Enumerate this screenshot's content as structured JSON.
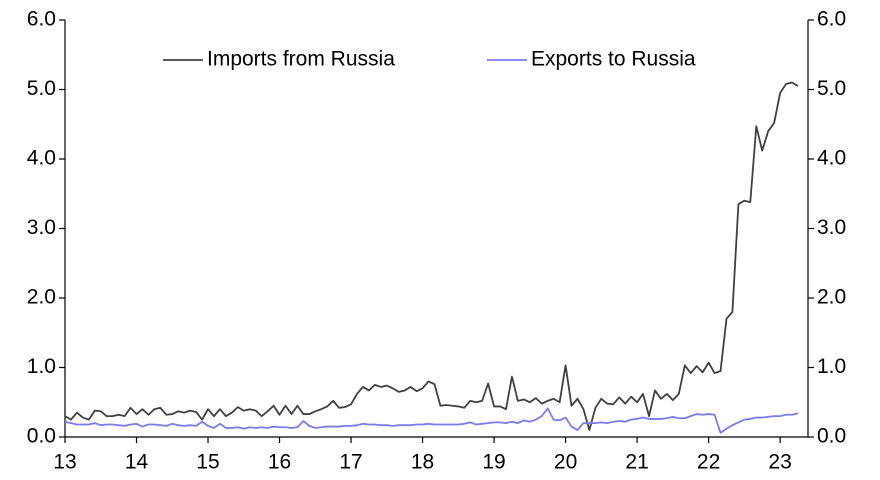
{
  "chart_data": {
    "type": "line",
    "x": [
      13,
      13.083,
      13.167,
      13.25,
      13.333,
      13.417,
      13.5,
      13.583,
      13.667,
      13.75,
      13.833,
      13.917,
      14,
      14.083,
      14.167,
      14.25,
      14.333,
      14.417,
      14.5,
      14.583,
      14.667,
      14.75,
      14.833,
      14.917,
      15,
      15.083,
      15.167,
      15.25,
      15.333,
      15.417,
      15.5,
      15.583,
      15.667,
      15.75,
      15.833,
      15.917,
      16,
      16.083,
      16.167,
      16.25,
      16.333,
      16.417,
      16.5,
      16.583,
      16.667,
      16.75,
      16.833,
      16.917,
      17,
      17.083,
      17.167,
      17.25,
      17.333,
      17.417,
      17.5,
      17.583,
      17.667,
      17.75,
      17.833,
      17.917,
      18,
      18.083,
      18.167,
      18.25,
      18.333,
      18.417,
      18.5,
      18.583,
      18.667,
      18.75,
      18.833,
      18.917,
      19,
      19.083,
      19.167,
      19.25,
      19.333,
      19.417,
      19.5,
      19.583,
      19.667,
      19.75,
      19.833,
      19.917,
      20,
      20.083,
      20.167,
      20.25,
      20.333,
      20.417,
      20.5,
      20.583,
      20.667,
      20.75,
      20.833,
      20.917,
      21,
      21.083,
      21.167,
      21.25,
      21.333,
      21.417,
      21.5,
      21.583,
      21.667,
      21.75,
      21.833,
      21.917,
      22,
      22.083,
      22.167,
      22.25,
      22.333,
      22.417,
      22.5,
      22.583,
      22.667,
      22.75,
      22.833,
      22.917,
      23,
      23.083,
      23.167,
      23.25
    ],
    "series": [
      {
        "name": "Imports from Russia",
        "color": "#404040",
        "values": [
          0.3,
          0.25,
          0.35,
          0.28,
          0.25,
          0.38,
          0.37,
          0.3,
          0.3,
          0.32,
          0.3,
          0.42,
          0.33,
          0.4,
          0.32,
          0.4,
          0.42,
          0.32,
          0.33,
          0.37,
          0.35,
          0.38,
          0.36,
          0.25,
          0.4,
          0.3,
          0.4,
          0.3,
          0.35,
          0.43,
          0.38,
          0.4,
          0.38,
          0.3,
          0.37,
          0.45,
          0.32,
          0.45,
          0.33,
          0.45,
          0.33,
          0.33,
          0.37,
          0.4,
          0.44,
          0.52,
          0.42,
          0.43,
          0.47,
          0.62,
          0.72,
          0.67,
          0.75,
          0.72,
          0.74,
          0.7,
          0.65,
          0.67,
          0.72,
          0.66,
          0.7,
          0.8,
          0.76,
          0.45,
          0.46,
          0.45,
          0.44,
          0.42,
          0.52,
          0.5,
          0.52,
          0.77,
          0.44,
          0.44,
          0.4,
          0.87,
          0.52,
          0.54,
          0.5,
          0.56,
          0.48,
          0.52,
          0.55,
          0.5,
          1.03,
          0.45,
          0.55,
          0.4,
          0.1,
          0.42,
          0.55,
          0.48,
          0.47,
          0.57,
          0.48,
          0.58,
          0.5,
          0.62,
          0.3,
          0.67,
          0.55,
          0.62,
          0.53,
          0.62,
          1.03,
          0.92,
          1.02,
          0.93,
          1.07,
          0.92,
          0.95,
          1.7,
          1.8,
          3.35,
          3.4,
          3.38,
          4.47,
          4.12,
          4.4,
          4.52,
          4.95,
          5.08,
          5.1,
          5.05
        ]
      },
      {
        "name": "Exports to Russia",
        "color": "#7b7bf0",
        "values": [
          0.22,
          0.2,
          0.18,
          0.18,
          0.18,
          0.2,
          0.17,
          0.18,
          0.18,
          0.17,
          0.16,
          0.18,
          0.19,
          0.15,
          0.18,
          0.18,
          0.17,
          0.16,
          0.19,
          0.17,
          0.16,
          0.17,
          0.16,
          0.22,
          0.16,
          0.13,
          0.19,
          0.13,
          0.13,
          0.14,
          0.12,
          0.14,
          0.13,
          0.14,
          0.13,
          0.15,
          0.14,
          0.14,
          0.13,
          0.14,
          0.23,
          0.16,
          0.13,
          0.14,
          0.15,
          0.15,
          0.15,
          0.16,
          0.16,
          0.17,
          0.19,
          0.18,
          0.18,
          0.17,
          0.17,
          0.16,
          0.17,
          0.17,
          0.17,
          0.18,
          0.18,
          0.19,
          0.18,
          0.18,
          0.18,
          0.18,
          0.18,
          0.19,
          0.21,
          0.18,
          0.19,
          0.2,
          0.21,
          0.21,
          0.2,
          0.22,
          0.2,
          0.24,
          0.22,
          0.25,
          0.3,
          0.41,
          0.25,
          0.24,
          0.28,
          0.15,
          0.1,
          0.2,
          0.2,
          0.2,
          0.21,
          0.2,
          0.22,
          0.23,
          0.22,
          0.25,
          0.26,
          0.28,
          0.26,
          0.26,
          0.26,
          0.27,
          0.29,
          0.27,
          0.27,
          0.3,
          0.33,
          0.32,
          0.33,
          0.32,
          0.06,
          0.12,
          0.17,
          0.21,
          0.25,
          0.26,
          0.28,
          0.28,
          0.29,
          0.3,
          0.3,
          0.32,
          0.32,
          0.34
        ]
      }
    ],
    "xlim": [
      13,
      23.39
    ],
    "xticks": [
      13,
      14,
      15,
      16,
      17,
      18,
      19,
      20,
      21,
      22,
      23
    ],
    "ylim": [
      0,
      6
    ],
    "yticks": [
      {
        "value": 0,
        "label": "0.0"
      },
      {
        "value": 1,
        "label": "1.0"
      },
      {
        "value": 2,
        "label": "2.0"
      },
      {
        "value": 3,
        "label": "3.0"
      },
      {
        "value": 4,
        "label": "4.0"
      },
      {
        "value": 5,
        "label": "5.0"
      },
      {
        "value": 6,
        "label": "6.0"
      }
    ],
    "y2lim": [
      0,
      6
    ],
    "y2ticks": [
      {
        "value": 0,
        "label": "0.0"
      },
      {
        "value": 1,
        "label": "1.0"
      },
      {
        "value": 2,
        "label": "2.0"
      },
      {
        "value": 3,
        "label": "3.0"
      },
      {
        "value": 4,
        "label": "4.0"
      },
      {
        "value": 5,
        "label": "5.0"
      },
      {
        "value": 6,
        "label": "6.0"
      }
    ],
    "grid": false,
    "legend": "top"
  }
}
